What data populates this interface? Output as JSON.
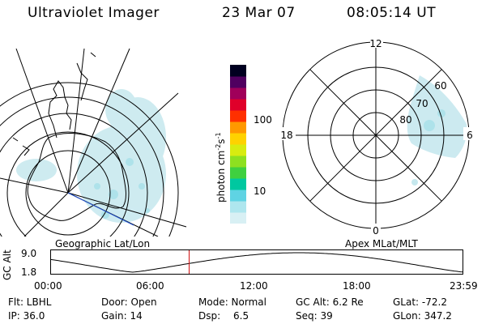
{
  "header": {
    "instrument": "Ultraviolet Imager",
    "date": "23 Mar 07",
    "time": "08:05:14 UT"
  },
  "colorbar": {
    "unit_label": "photon cm",
    "unit_exp1": "-2",
    "unit_mid": "s",
    "unit_exp2": "-1",
    "ticks": [
      "100",
      "10"
    ],
    "colors": [
      "#d8f0f4",
      "#aee6ee",
      "#5fd3e3",
      "#00c8a0",
      "#3fd040",
      "#8ee020",
      "#d8ec10",
      "#ffd200",
      "#ff9800",
      "#ff3000",
      "#e0002a",
      "#a0005a",
      "#500060",
      "#000020"
    ]
  },
  "geo_panel": {
    "label": "Geographic Lat/Lon"
  },
  "polar_panel": {
    "label": "Apex MLat/MLT",
    "mlt_labels": {
      "top": "12",
      "left": "18",
      "right": "6",
      "bottom": "0"
    },
    "lat_labels": [
      "60",
      "70",
      "80"
    ]
  },
  "altitude_plot": {
    "ylabel": "GC Alt",
    "yticks": [
      "9.0",
      "1.8"
    ],
    "xticks": [
      "00:00",
      "06:00",
      "12:00",
      "18:00",
      "23:59"
    ],
    "current_time_hours": 8.087
  },
  "footer": {
    "row1": {
      "flt": "Flt: LBHL",
      "door": "Door: Open",
      "mode": "Mode: Normal",
      "gcalt": "GC Alt: 6.2 Re",
      "glat": "GLat: -72.2"
    },
    "row2": {
      "ip": "IP: 36.0",
      "gain": "Gain: 14",
      "dsp_label": "Dsp:",
      "dsp_value": "6.5",
      "seq": "Seq: 39",
      "glon": "GLon: 347.2"
    }
  }
}
